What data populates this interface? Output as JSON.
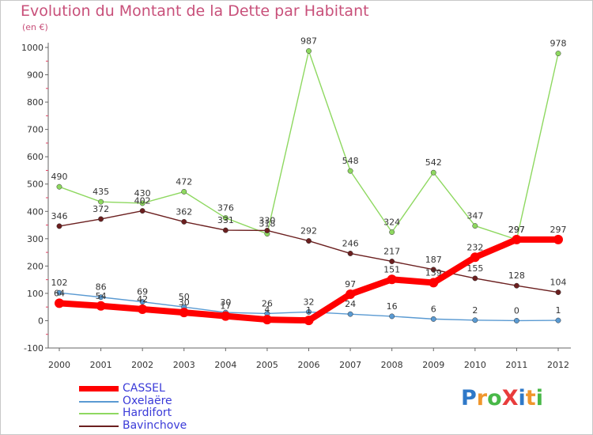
{
  "title": "Evolution du Montant de la Dette par Habitant",
  "unit_label": "(en €)",
  "logo": {
    "text": "ProXiti",
    "letters": [
      "P",
      "r",
      "o",
      "X",
      "i",
      "t",
      "i"
    ],
    "colors": [
      "#2e78c8",
      "#f0962c",
      "#48b848",
      "#e83c3c",
      "#2e78c8",
      "#f0962c",
      "#48b848"
    ]
  },
  "chart_data": {
    "type": "line",
    "x": [
      2000,
      2001,
      2002,
      2003,
      2004,
      2005,
      2006,
      2007,
      2008,
      2009,
      2010,
      2011,
      2012
    ],
    "ylim": [
      -100,
      1000
    ],
    "yticks": [
      -100,
      0,
      100,
      200,
      300,
      400,
      500,
      600,
      700,
      800,
      900,
      1000
    ],
    "grid": false,
    "legend_position": "bottom-left",
    "series": [
      {
        "name": "CASSEL",
        "color": "#ff0000",
        "values": [
          64,
          54,
          42,
          30,
          17,
          4,
          1,
          97,
          151,
          139,
          232,
          297,
          297
        ],
        "labels": [
          "64",
          "54",
          "42",
          "30",
          "17",
          "4",
          "1",
          "97",
          "151",
          "139",
          "232",
          "297",
          "297"
        ]
      },
      {
        "name": "Oxelaëre",
        "color": "#5a9ad2",
        "values": [
          102,
          86,
          69,
          50,
          30,
          26,
          32,
          24,
          16,
          6,
          2,
          0,
          1
        ],
        "labels": [
          "102",
          "86",
          "69",
          "50",
          "30",
          "26",
          "32",
          "24",
          "16",
          "6",
          "2",
          "0",
          "1"
        ]
      },
      {
        "name": "Hardifort",
        "color": "#8ed860",
        "values": [
          490,
          435,
          430,
          472,
          376,
          318,
          987,
          548,
          324,
          542,
          347,
          297,
          978
        ],
        "labels": [
          "490",
          "435",
          "430",
          "472",
          "376",
          "318",
          "987",
          "548",
          "324",
          "542",
          "347",
          "297",
          "978"
        ]
      },
      {
        "name": "Bavinchove",
        "color": "#6b1f1f",
        "values": [
          346,
          372,
          402,
          362,
          331,
          330,
          292,
          246,
          217,
          187,
          155,
          128,
          104
        ],
        "labels": [
          "346",
          "372",
          "402",
          "362",
          "331",
          "330",
          "292",
          "246",
          "217",
          "187",
          "155",
          "128",
          "104"
        ]
      }
    ]
  }
}
